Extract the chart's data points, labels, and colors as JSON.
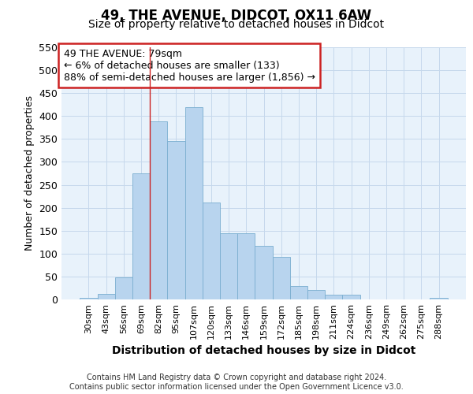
{
  "title1": "49, THE AVENUE, DIDCOT, OX11 6AW",
  "title2": "Size of property relative to detached houses in Didcot",
  "xlabel": "Distribution of detached houses by size in Didcot",
  "ylabel": "Number of detached properties",
  "categories": [
    "30sqm",
    "43sqm",
    "56sqm",
    "69sqm",
    "82sqm",
    "95sqm",
    "107sqm",
    "120sqm",
    "133sqm",
    "146sqm",
    "159sqm",
    "172sqm",
    "185sqm",
    "198sqm",
    "211sqm",
    "224sqm",
    "236sqm",
    "249sqm",
    "262sqm",
    "275sqm",
    "288sqm"
  ],
  "values": [
    3,
    12,
    48,
    275,
    388,
    345,
    420,
    211,
    145,
    145,
    117,
    93,
    30,
    21,
    10,
    10,
    0,
    0,
    0,
    0,
    3
  ],
  "bar_color": "#b8d4ee",
  "bar_edge_color": "#7aaed0",
  "red_line_x": 3.5,
  "red_line_color": "#cc2222",
  "annotation_text": "49 THE AVENUE: 79sqm\n← 6% of detached houses are smaller (133)\n88% of semi-detached houses are larger (1,856) →",
  "annotation_box_facecolor": "#ffffff",
  "annotation_box_edgecolor": "#cc2222",
  "ylim_max": 550,
  "yticks": [
    0,
    50,
    100,
    150,
    200,
    250,
    300,
    350,
    400,
    450,
    500,
    550
  ],
  "grid_color": "#c5d8ec",
  "axes_bg_color": "#e8f2fb",
  "footer1": "Contains HM Land Registry data © Crown copyright and database right 2024.",
  "footer2": "Contains public sector information licensed under the Open Government Licence v3.0.",
  "title1_fontsize": 12,
  "title2_fontsize": 10,
  "xlabel_fontsize": 10,
  "ylabel_fontsize": 9,
  "ytick_fontsize": 9,
  "xtick_fontsize": 8,
  "annotation_fontsize": 9,
  "footer_fontsize": 7
}
